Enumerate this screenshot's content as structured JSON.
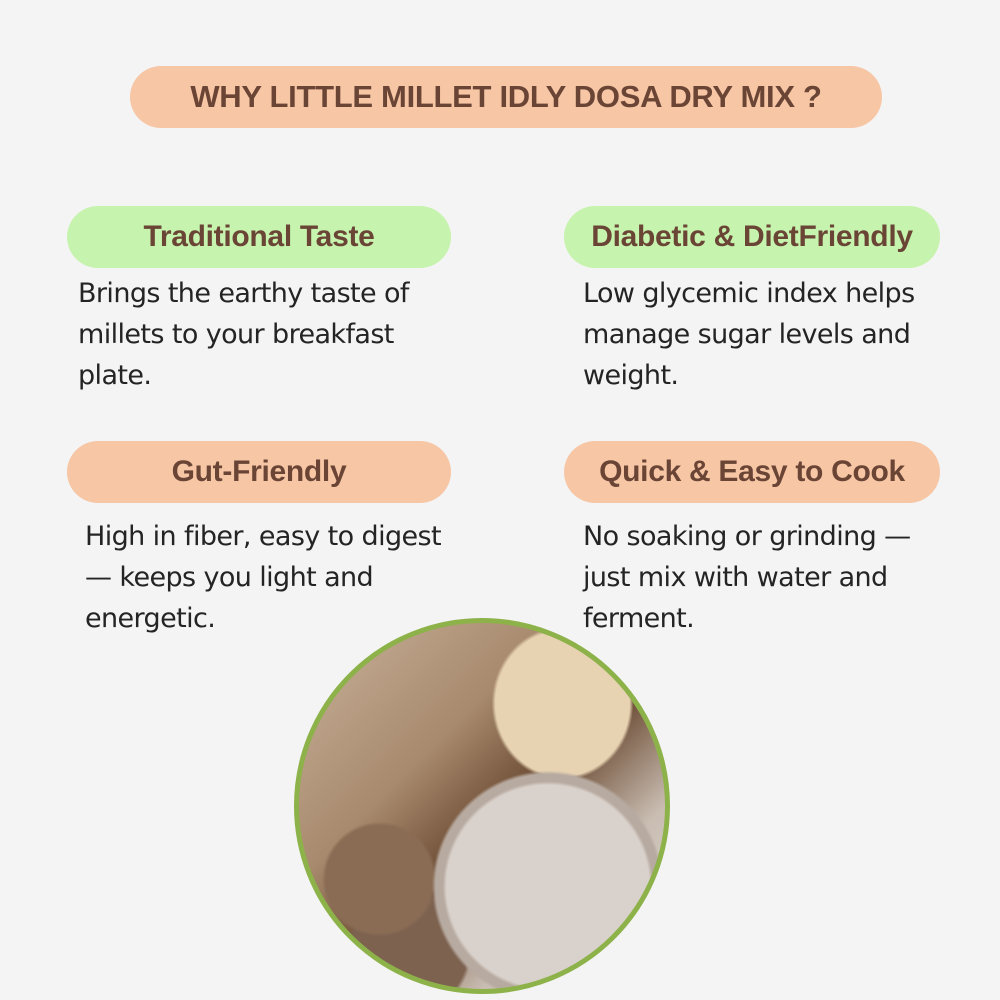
{
  "title": "WHY LITTLE MILLET IDLY DOSA DRY MIX  ?",
  "features": [
    {
      "heading": "Traditional Taste",
      "text": "Brings the earthy taste of millets to your breakfast plate.",
      "color": "#c6f3ad"
    },
    {
      "heading": "Diabetic & DietFriendly",
      "text": "Low glycemic index helps manage sugar levels and weight.",
      "color": "#c6f3ad"
    },
    {
      "heading": "Gut-Friendly",
      "text": "High in fiber, easy to digest — keeps you light and energetic.",
      "color": "#f7c6a5"
    },
    {
      "heading": "Quick & Easy to Cook",
      "text": "No soaking or grinding — just mix with water and ferment.",
      "color": "#f7c6a5"
    }
  ],
  "colors": {
    "background": "#f4f4f4",
    "heading_text": "#6a4536",
    "photo_border": "#8db24a"
  }
}
